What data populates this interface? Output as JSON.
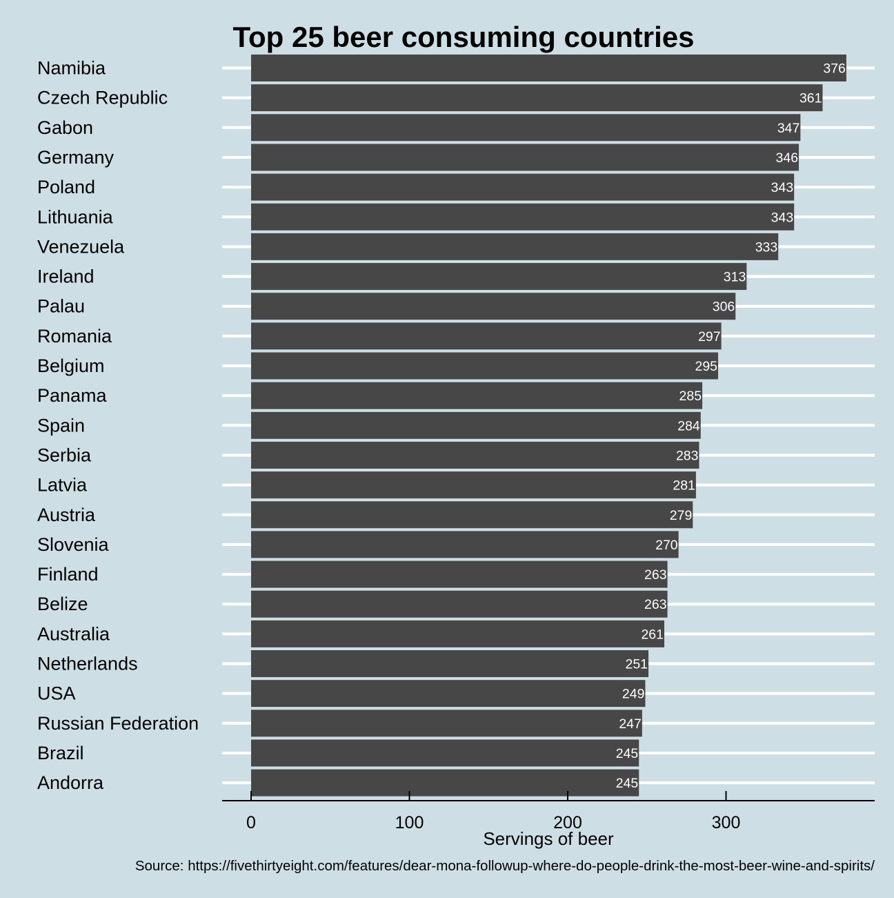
{
  "chart_data": {
    "type": "bar",
    "orientation": "horizontal",
    "title": "Top 25 beer consuming countries",
    "xlabel": "Servings of beer",
    "ylabel": "",
    "caption": "Source: https://fivethirtyeight.com/features/dear-mona-followup-where-do-people-drink-the-most-beer-wine-and-spirits/",
    "categories": [
      "Namibia",
      "Czech Republic",
      "Gabon",
      "Germany",
      "Poland",
      "Lithuania",
      "Venezuela",
      "Ireland",
      "Palau",
      "Romania",
      "Belgium",
      "Panama",
      "Spain",
      "Serbia",
      "Latvia",
      "Austria",
      "Slovenia",
      "Finland",
      "Belize",
      "Australia",
      "Netherlands",
      "USA",
      "Russian Federation",
      "Brazil",
      "Andorra"
    ],
    "values": [
      376,
      361,
      347,
      346,
      343,
      343,
      333,
      313,
      306,
      297,
      295,
      285,
      284,
      283,
      281,
      279,
      270,
      263,
      263,
      261,
      251,
      249,
      247,
      245,
      245
    ],
    "xlim": [
      -18,
      394
    ],
    "xticks": [
      0,
      100,
      200,
      300
    ],
    "bar_color": "#474747",
    "label_color": "#ffffff",
    "background_color": "#cddfe5",
    "grid": "horizontal major lines",
    "legend": "none"
  }
}
